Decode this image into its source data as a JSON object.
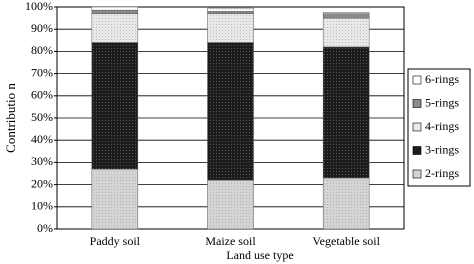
{
  "chart_data": {
    "type": "stacked_bar",
    "x_label": "Land use type",
    "y_label": "Contributio n",
    "categories": [
      "Paddy soil",
      "Maize soil",
      "Vegetable soil"
    ],
    "series": [
      {
        "name": "2-rings",
        "color": "#d4d4d4",
        "values": [
          27,
          22,
          23
        ]
      },
      {
        "name": "3-rings",
        "color": "#1c1c1c",
        "values": [
          57,
          62,
          59
        ]
      },
      {
        "name": "4-rings",
        "color": "#e8e8e8",
        "values": [
          13,
          13,
          13
        ]
      },
      {
        "name": "5-rings",
        "color": "#8c8c8c",
        "values": [
          1.5,
          1,
          2
        ]
      },
      {
        "name": "6-rings",
        "color": "#ffffff",
        "values": [
          1.5,
          1.5,
          0.5
        ]
      }
    ],
    "ylim": [
      0,
      100
    ],
    "yticks": [
      {
        "value": 0,
        "label": "0%"
      },
      {
        "value": 10,
        "label": "10%"
      },
      {
        "value": 20,
        "label": "20%"
      },
      {
        "value": 30,
        "label": "30%"
      },
      {
        "value": 40,
        "label": "40%"
      },
      {
        "value": 50,
        "label": "50%"
      },
      {
        "value": 60,
        "label": "60%"
      },
      {
        "value": 70,
        "label": "70%"
      },
      {
        "value": 80,
        "label": "80%"
      },
      {
        "value": 90,
        "label": "90%"
      },
      {
        "value": 100,
        "label": "100%"
      }
    ],
    "grid": true,
    "legend": "right"
  }
}
